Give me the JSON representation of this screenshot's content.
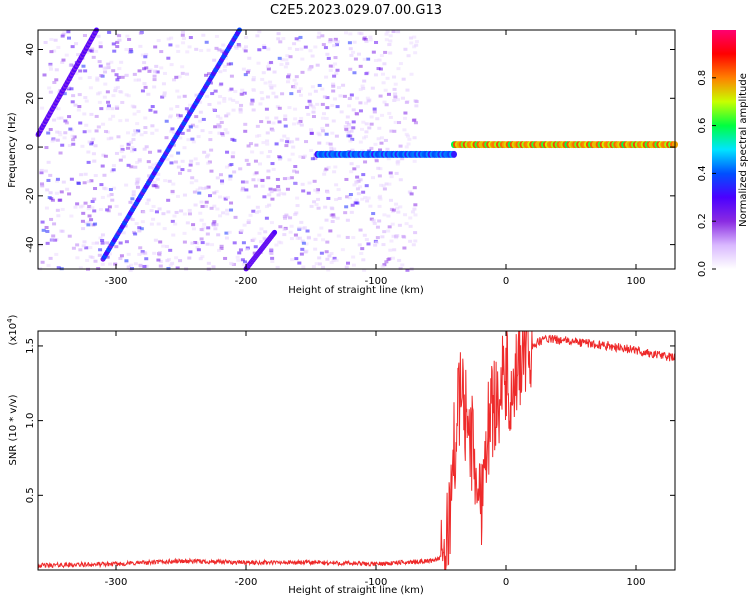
{
  "title": "C2E5.2023.029.07.00.G13",
  "chart_data": [
    {
      "type": "heatmap",
      "xlabel": "Height of straight line (km)",
      "ylabel": "Frequency (Hz)",
      "xlim": [
        -360,
        130
      ],
      "ylim": [
        -50,
        48
      ],
      "xticks": [
        -300,
        -200,
        -100,
        0,
        100
      ],
      "yticks": [
        -40,
        -20,
        0,
        20,
        40
      ],
      "colorbar": {
        "label": "Normalized spectral amplitude",
        "range": [
          0,
          1
        ],
        "ticks": [
          0.0,
          0.2,
          0.4,
          0.6,
          0.8
        ],
        "colormap": [
          "#ffffff",
          "#d9b8ff",
          "#8a2be2",
          "#4b00ff",
          "#0050ff",
          "#00e5ff",
          "#00ff40",
          "#c8ff00",
          "#ff8000",
          "#ff0000",
          "#ff0070"
        ]
      },
      "features": [
        {
          "name": "main-carrier",
          "x_range": [
            -40,
            130
          ],
          "frequency": 1,
          "amplitude": 0.85
        },
        {
          "name": "carrier-faint",
          "x_range": [
            -145,
            -40
          ],
          "frequency": -3,
          "amplitude": 0.45
        },
        {
          "name": "spur-a",
          "x": [
            -360,
            -315
          ],
          "y": [
            5,
            48
          ],
          "amplitude": 0.3
        },
        {
          "name": "spur-b",
          "x": [
            -310,
            -205
          ],
          "y": [
            -46,
            48
          ],
          "amplitude": 0.4
        },
        {
          "name": "spur-c",
          "x": [
            -200,
            -178
          ],
          "y": [
            -50,
            -35
          ],
          "amplitude": 0.3
        }
      ]
    },
    {
      "type": "line",
      "xlabel": "Height of straight line (km)",
      "ylabel": "SNR (10 * v/v)",
      "ylabel_scale": "(x10",
      "ylabel_scale_exp": "4",
      "ylabel_scale_close": ")",
      "xlim": [
        -360,
        130
      ],
      "ylim": [
        0,
        1.6
      ],
      "xticks": [
        -300,
        -200,
        -100,
        0,
        100
      ],
      "yticks": [
        0.5,
        1.0,
        1.5
      ],
      "ytick_labels": [
        "0.5",
        "1.0",
        "1.5"
      ],
      "series": [
        {
          "color": "#ee2a2a",
          "x": [
            -360,
            -300,
            -250,
            -200,
            -150,
            -100,
            -80,
            -60,
            -50,
            -45,
            -40,
            -35,
            -30,
            -25,
            -20,
            -15,
            -10,
            -5,
            0,
            5,
            10,
            15,
            20,
            30,
            40,
            60,
            80,
            100,
            110,
            130
          ],
          "y": [
            0.03,
            0.04,
            0.06,
            0.05,
            0.05,
            0.04,
            0.05,
            0.06,
            0.08,
            0.2,
            0.8,
            1.2,
            1.0,
            0.8,
            0.4,
            0.9,
            1.1,
            1.2,
            1.3,
            1.0,
            1.4,
            1.45,
            1.5,
            1.55,
            1.54,
            1.52,
            1.5,
            1.47,
            1.45,
            1.42
          ]
        }
      ]
    }
  ]
}
